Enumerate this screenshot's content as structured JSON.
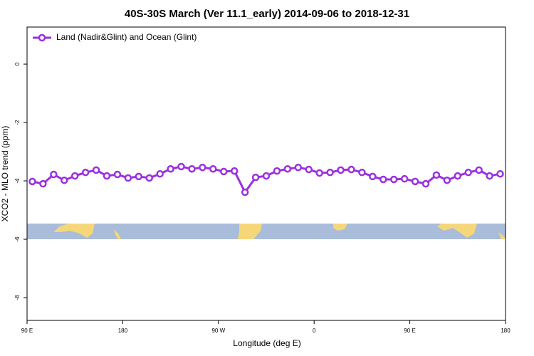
{
  "chart_data": {
    "type": "line",
    "title": "40S-30S March (Ver 11.1_early)   2014-09-06 to 2018-12-31",
    "x_label": "Longitude (deg E)",
    "y_label": "XCO2 - MLO trend (ppm)",
    "x": [
      95,
      105,
      115,
      125,
      135,
      145,
      155,
      165,
      175,
      185,
      195,
      205,
      215,
      225,
      235,
      245,
      255,
      265,
      275,
      285,
      295,
      305,
      315,
      325,
      335,
      345,
      355,
      365,
      375,
      385,
      395,
      405,
      415,
      425,
      435,
      445,
      455,
      465,
      475,
      485,
      495,
      505,
      515,
      525,
      535
    ],
    "series": [
      {
        "name": "Land (Nadir&Glint) and Ocean (Glint)",
        "color": "#9b30e0",
        "values": [
          -4.02,
          -4.1,
          -3.78,
          -3.98,
          -3.83,
          -3.71,
          -3.63,
          -3.83,
          -3.78,
          -3.9,
          -3.85,
          -3.9,
          -3.76,
          -3.59,
          -3.51,
          -3.59,
          -3.54,
          -3.59,
          -3.68,
          -3.66,
          -4.39,
          -3.88,
          -3.83,
          -3.66,
          -3.59,
          -3.54,
          -3.61,
          -3.73,
          -3.71,
          -3.63,
          -3.61,
          -3.71,
          -3.85,
          -3.95,
          -3.95,
          -3.93,
          -4.02,
          -4.1,
          -3.8,
          -3.98,
          -3.83,
          -3.71,
          -3.63,
          -3.83,
          -3.76
        ]
      }
    ],
    "xlim": [
      90,
      540
    ],
    "xticks": [
      {
        "value": 90,
        "label": "90 E"
      },
      180,
      {
        "value": 270,
        "label": "90 W"
      },
      {
        "value": 360,
        "label": "0"
      },
      {
        "value": 450,
        "label": "90 E"
      },
      {
        "value": 540,
        "label": "180"
      }
    ],
    "ylim": [
      -8.78,
      1.27
    ],
    "yticks": [
      0,
      -2,
      -4,
      -6,
      -8
    ],
    "legend": "top-left",
    "grid": false
  }
}
